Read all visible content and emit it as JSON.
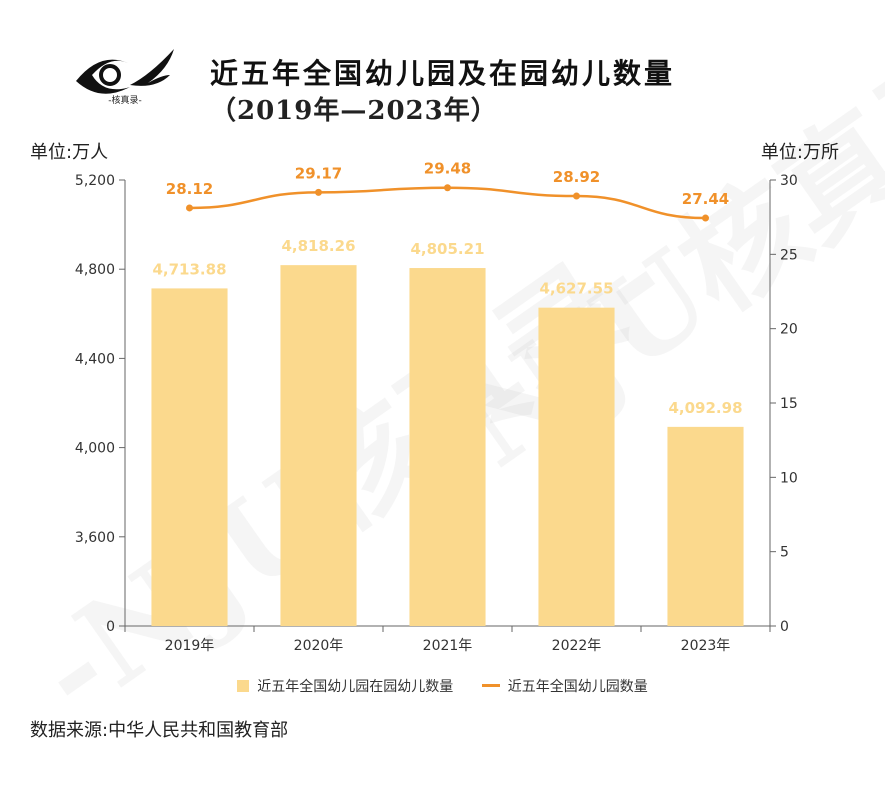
{
  "title": "近五年全国幼儿园及在园幼儿数量",
  "subtitle": "（2019年—2023年）",
  "logo_text": "-核真录-",
  "watermark_text": "-NJU核真录-",
  "unit_left": "单位:万人",
  "unit_right": "单位:万所",
  "source": "数据来源:中华人民共和国教育部",
  "colors": {
    "bar": "#fbd98d",
    "bar_label": "#fbd98d",
    "line": "#f0912a",
    "line_label": "#f0912a"
  },
  "chart_data": {
    "type": "bar",
    "categories": [
      "2019年",
      "2020年",
      "2021年",
      "2022年",
      "2023年"
    ],
    "series": [
      {
        "name": "近五年全国幼儿园在园幼儿数量",
        "type": "bar",
        "axis": "left",
        "values": [
          4713.88,
          4818.26,
          4805.21,
          4627.55,
          4092.98
        ],
        "labels": [
          "4,713.88",
          "4,818.26",
          "4,805.21",
          "4,627.55",
          "4,092.98"
        ]
      },
      {
        "name": "近五年全国幼儿园数量",
        "type": "line",
        "axis": "right",
        "values": [
          28.12,
          29.17,
          29.48,
          28.92,
          27.44
        ],
        "labels": [
          "28.12",
          "29.17",
          "29.48",
          "28.92",
          "27.44"
        ]
      }
    ],
    "left_axis": {
      "ticks": [
        0,
        3600,
        4000,
        4400,
        4800,
        5200
      ],
      "tick_labels": [
        "0",
        "3,600",
        "4,000",
        "4,400",
        "4,800",
        "5,200"
      ],
      "break_between": [
        0,
        3600
      ]
    },
    "right_axis": {
      "ticks": [
        0,
        5,
        10,
        15,
        20,
        25,
        30
      ],
      "tick_labels": [
        "0",
        "5",
        "10",
        "15",
        "20",
        "25",
        "30"
      ],
      "ylim": [
        0,
        30
      ]
    },
    "grid": false,
    "legend": "bottom"
  }
}
